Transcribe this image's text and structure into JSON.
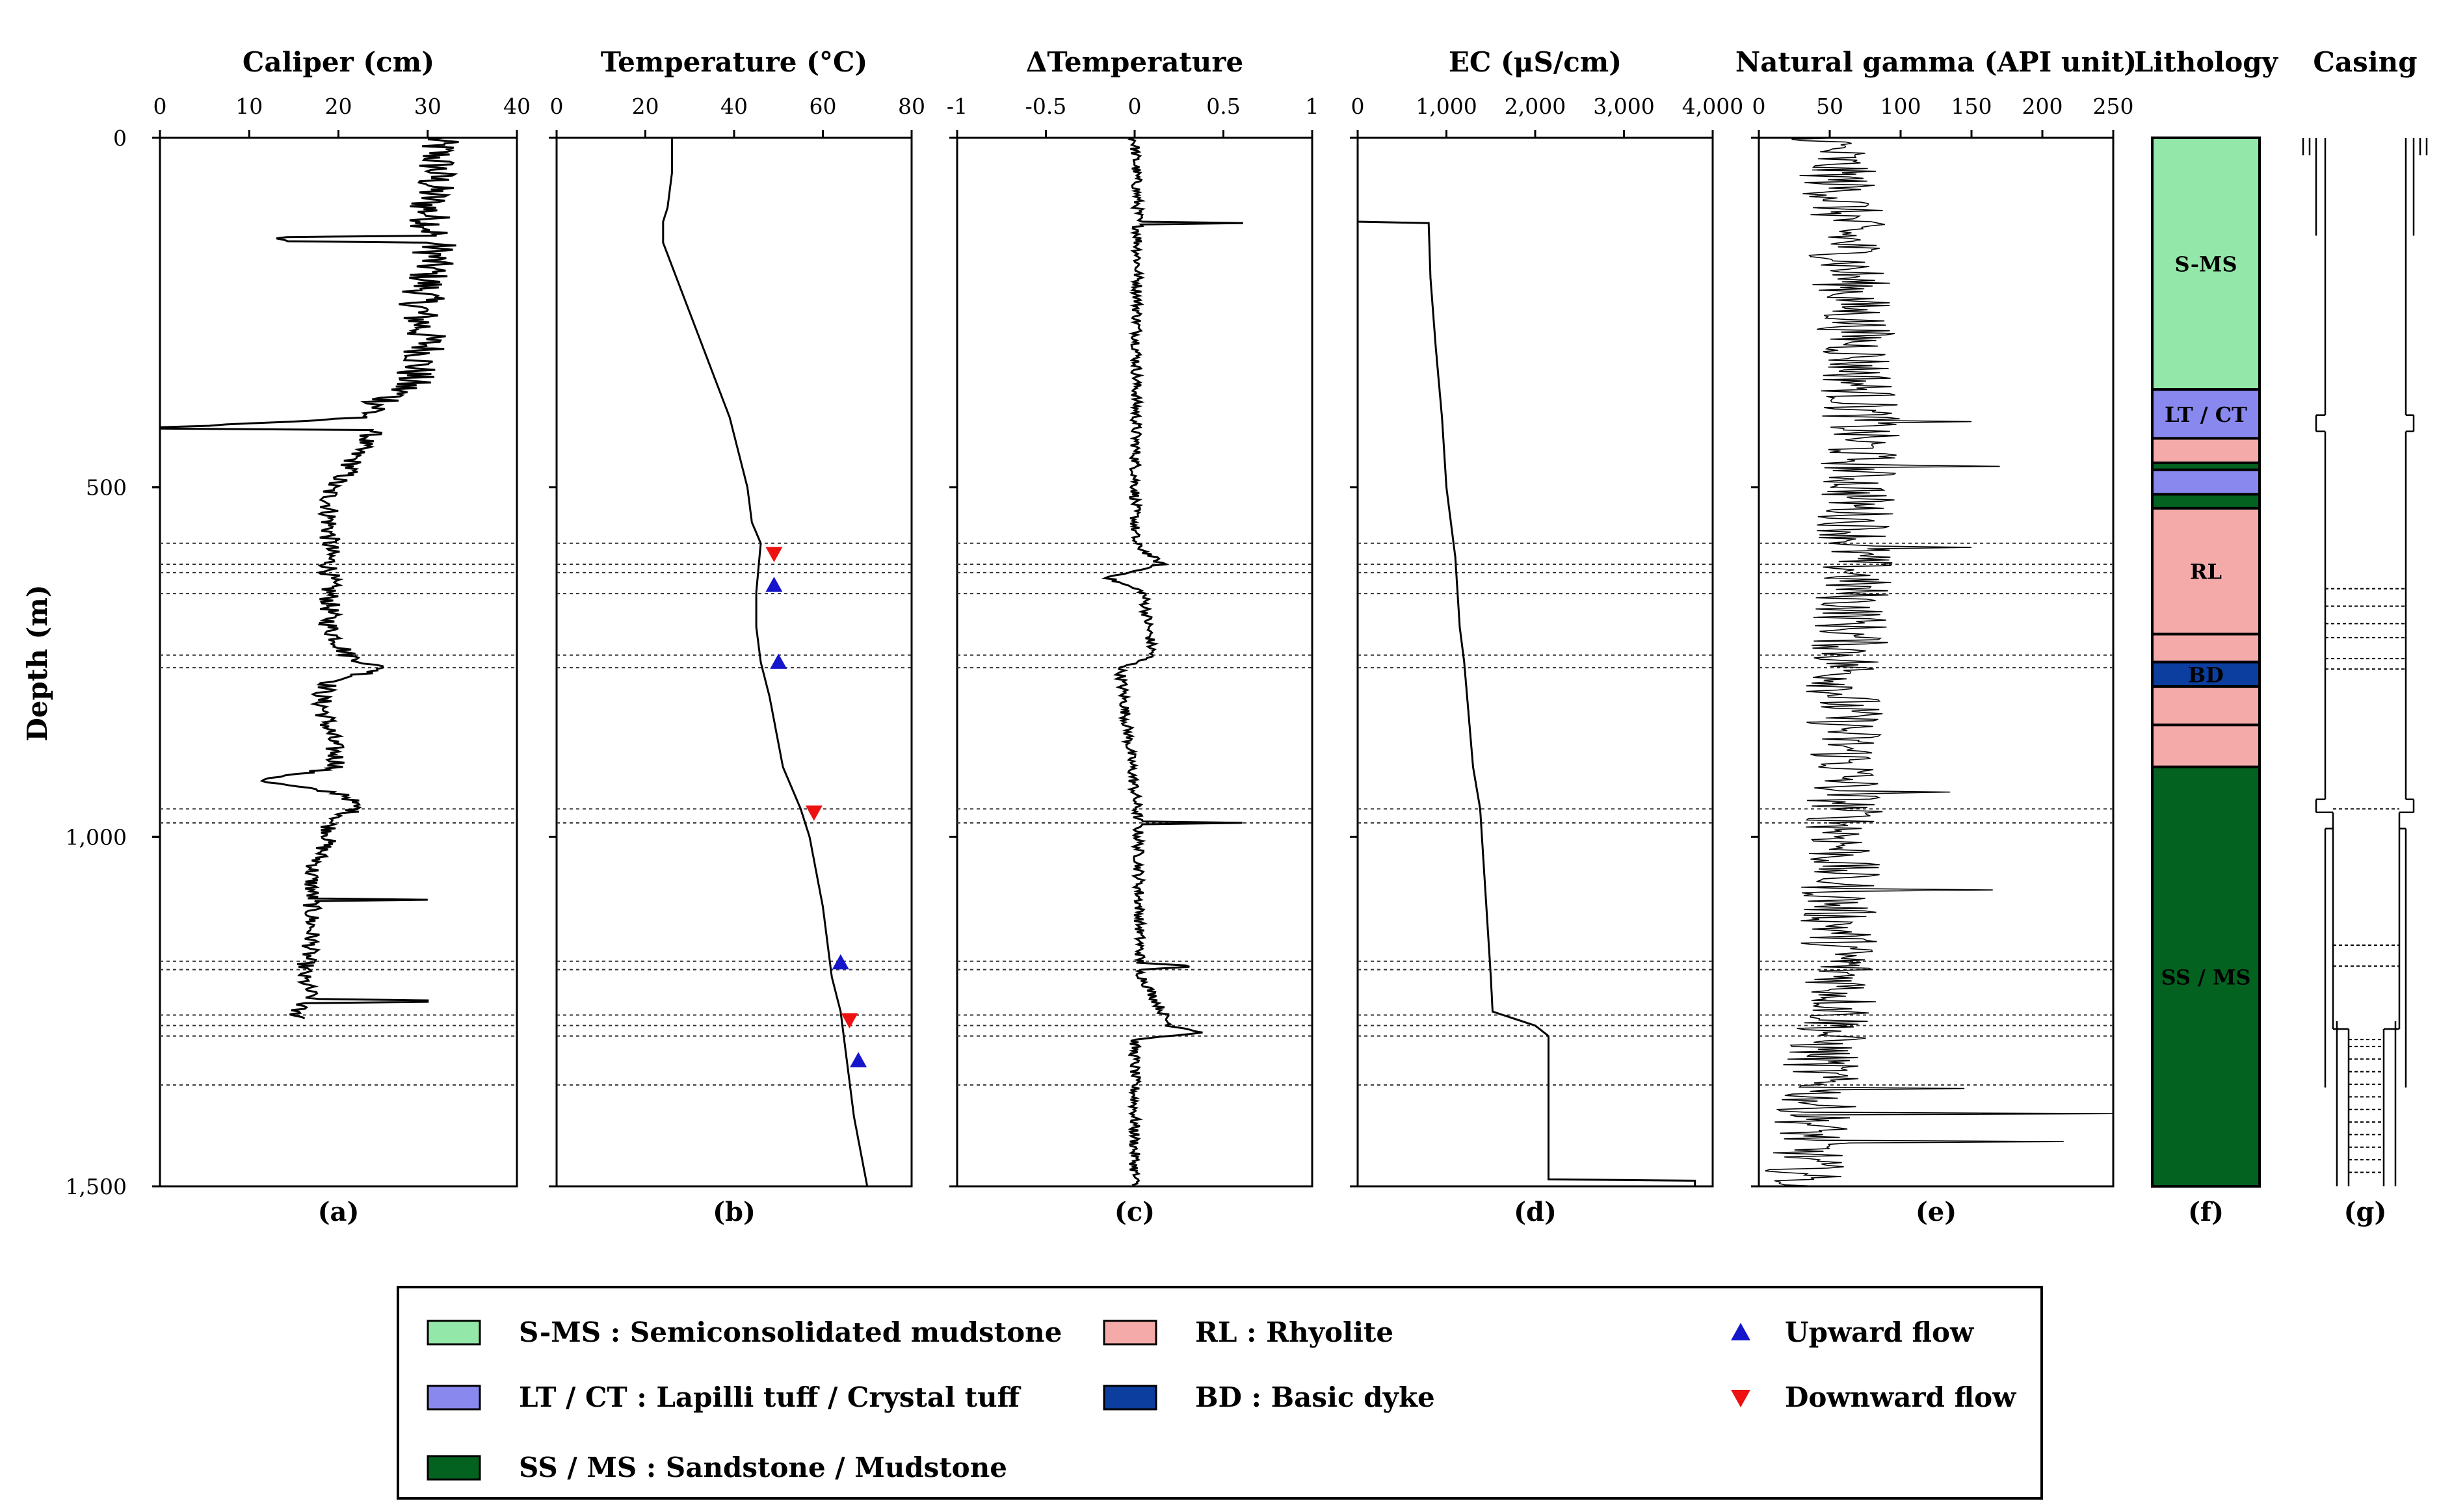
{
  "figure": {
    "y_axis": {
      "label": "Depth (m)",
      "range": [
        0,
        1500
      ],
      "ticks": [
        {
          "value": 0,
          "label": "0"
        },
        {
          "value": 500,
          "label": "500"
        },
        {
          "value": 1000,
          "label": "1,000"
        },
        {
          "value": 1500,
          "label": "1,500"
        }
      ]
    },
    "flow_zone_depths": [
      580,
      610,
      622,
      652,
      740,
      758,
      960,
      980,
      1178,
      1190,
      1255,
      1270,
      1285,
      1355
    ],
    "casing_dotted_depths": [
      645,
      670,
      695,
      715,
      745,
      760,
      960,
      1155,
      1185,
      1290
    ]
  },
  "chart_data": [
    {
      "type": "line",
      "panel": "(a)",
      "title": "Caliper (cm)",
      "xlim": [
        0,
        40
      ],
      "xticks": [
        "0",
        "10",
        "20",
        "30",
        "40"
      ],
      "xtick_values": [
        0,
        10,
        20,
        30,
        40
      ],
      "profile": [
        [
          0,
          31
        ],
        [
          50,
          31
        ],
        [
          100,
          30
        ],
        [
          150,
          31
        ],
        [
          200,
          30
        ],
        [
          250,
          29
        ],
        [
          300,
          30
        ],
        [
          350,
          28
        ],
        [
          400,
          23
        ],
        [
          415,
          0
        ],
        [
          418,
          24
        ],
        [
          450,
          22
        ],
        [
          480,
          21
        ],
        [
          500,
          19
        ],
        [
          550,
          19
        ],
        [
          600,
          19
        ],
        [
          650,
          19
        ],
        [
          700,
          19
        ],
        [
          740,
          21
        ],
        [
          760,
          25
        ],
        [
          780,
          19
        ],
        [
          800,
          18
        ],
        [
          850,
          19
        ],
        [
          900,
          20
        ],
        [
          920,
          11
        ],
        [
          940,
          21
        ],
        [
          960,
          22
        ],
        [
          980,
          19
        ],
        [
          1000,
          19
        ],
        [
          1050,
          17
        ],
        [
          1100,
          17
        ],
        [
          1150,
          17
        ],
        [
          1200,
          16
        ],
        [
          1230,
          17
        ],
        [
          1250,
          15
        ],
        [
          1260,
          16
        ]
      ]
    },
    {
      "type": "line",
      "panel": "(b)",
      "title": "Temperature (°C)",
      "xlim": [
        0,
        80
      ],
      "xticks": [
        "0",
        "20",
        "40",
        "60",
        "80"
      ],
      "xtick_values": [
        0,
        20,
        40,
        60,
        80
      ],
      "profile": [
        [
          0,
          26
        ],
        [
          50,
          26
        ],
        [
          100,
          25
        ],
        [
          120,
          24
        ],
        [
          150,
          24
        ],
        [
          200,
          27
        ],
        [
          300,
          33
        ],
        [
          400,
          39
        ],
        [
          500,
          43
        ],
        [
          550,
          44
        ],
        [
          580,
          46
        ],
        [
          650,
          45
        ],
        [
          700,
          45
        ],
        [
          750,
          46
        ],
        [
          800,
          48
        ],
        [
          900,
          51
        ],
        [
          960,
          55
        ],
        [
          1000,
          57
        ],
        [
          1100,
          60
        ],
        [
          1200,
          62
        ],
        [
          1250,
          64
        ],
        [
          1300,
          65
        ],
        [
          1400,
          67
        ],
        [
          1500,
          70
        ]
      ],
      "markers": [
        {
          "depth": 595,
          "temp": 49,
          "kind": "down"
        },
        {
          "depth": 640,
          "temp": 49,
          "kind": "up"
        },
        {
          "depth": 750,
          "temp": 50,
          "kind": "up"
        },
        {
          "depth": 965,
          "temp": 58,
          "kind": "down"
        },
        {
          "depth": 1180,
          "temp": 64,
          "kind": "up"
        },
        {
          "depth": 1262,
          "temp": 66,
          "kind": "down"
        },
        {
          "depth": 1320,
          "temp": 68,
          "kind": "up"
        }
      ]
    },
    {
      "type": "line",
      "panel": "(c)",
      "title": "ΔTemperature",
      "xlim": [
        -1,
        1
      ],
      "xticks": [
        "-1",
        "-0.5",
        "0",
        "0.5",
        "1"
      ],
      "xtick_values": [
        -1,
        -0.5,
        0,
        0.5,
        1
      ],
      "profile": [
        [
          0,
          0
        ],
        [
          120,
          0.02
        ],
        [
          122,
          0.6
        ],
        [
          124,
          0.02
        ],
        [
          580,
          0
        ],
        [
          610,
          0.15
        ],
        [
          630,
          -0.15
        ],
        [
          650,
          0.05
        ],
        [
          740,
          0.1
        ],
        [
          760,
          -0.08
        ],
        [
          978,
          0.02
        ],
        [
          980,
          0.62
        ],
        [
          982,
          0.02
        ],
        [
          1180,
          0.03
        ],
        [
          1185,
          0.35
        ],
        [
          1190,
          0.02
        ],
        [
          1270,
          0.2
        ],
        [
          1280,
          0.4
        ],
        [
          1290,
          0
        ],
        [
          1500,
          0
        ]
      ]
    },
    {
      "type": "line",
      "panel": "(d)",
      "title": "EC (μS/cm)",
      "xlim": [
        0,
        4000
      ],
      "xticks": [
        "0",
        "1,000",
        "2,000",
        "3,000",
        "4,000"
      ],
      "xtick_values": [
        0,
        1000,
        2000,
        3000,
        4000
      ],
      "profile": [
        [
          0,
          0
        ],
        [
          120,
          0
        ],
        [
          122,
          800
        ],
        [
          200,
          820
        ],
        [
          300,
          880
        ],
        [
          400,
          950
        ],
        [
          500,
          1000
        ],
        [
          600,
          1100
        ],
        [
          700,
          1150
        ],
        [
          750,
          1200
        ],
        [
          900,
          1300
        ],
        [
          960,
          1380
        ],
        [
          1100,
          1450
        ],
        [
          1200,
          1500
        ],
        [
          1250,
          1520
        ],
        [
          1270,
          2000
        ],
        [
          1285,
          2150
        ],
        [
          1300,
          2150
        ],
        [
          1490,
          2150
        ],
        [
          1492,
          3800
        ]
      ]
    },
    {
      "type": "line",
      "panel": "(e)",
      "title": "Natural gamma (API unit)",
      "xlim": [
        0,
        250
      ],
      "xticks": [
        "0",
        "50",
        "100",
        "150",
        "200",
        "250"
      ],
      "xtick_values": [
        0,
        50,
        100,
        150,
        200,
        250
      ],
      "profile": [
        [
          0,
          50
        ],
        [
          100,
          60
        ],
        [
          200,
          65
        ],
        [
          300,
          70
        ],
        [
          400,
          72
        ],
        [
          500,
          70
        ],
        [
          600,
          68
        ],
        [
          700,
          65
        ],
        [
          800,
          60
        ],
        [
          900,
          62
        ],
        [
          1000,
          60
        ],
        [
          1100,
          55
        ],
        [
          1200,
          60
        ],
        [
          1250,
          60
        ],
        [
          1300,
          45
        ],
        [
          1400,
          40
        ],
        [
          1500,
          30
        ]
      ],
      "spikes": [
        [
          405,
          150
        ],
        [
          470,
          170
        ],
        [
          585,
          150
        ],
        [
          935,
          135
        ],
        [
          1075,
          165
        ],
        [
          1360,
          145
        ],
        [
          1395,
          250
        ],
        [
          1435,
          215
        ]
      ]
    },
    {
      "type": "table",
      "panel": "(f)",
      "title": "Lithology",
      "intervals": [
        {
          "top": 0,
          "bottom": 360,
          "code": "S-MS",
          "label": "S-MS"
        },
        {
          "top": 360,
          "bottom": 430,
          "code": "LT/CT",
          "label": "LT / CT"
        },
        {
          "top": 430,
          "bottom": 465,
          "code": "RL",
          "label": ""
        },
        {
          "top": 465,
          "bottom": 475,
          "code": "SS/MS",
          "label": ""
        },
        {
          "top": 475,
          "bottom": 510,
          "code": "LT/CT",
          "label": ""
        },
        {
          "top": 510,
          "bottom": 530,
          "code": "SS/MS",
          "label": ""
        },
        {
          "top": 530,
          "bottom": 710,
          "code": "RL",
          "label": "RL"
        },
        {
          "top": 710,
          "bottom": 750,
          "code": "RL",
          "label": ""
        },
        {
          "top": 750,
          "bottom": 785,
          "code": "BD",
          "label": "BD"
        },
        {
          "top": 785,
          "bottom": 840,
          "code": "RL",
          "label": ""
        },
        {
          "top": 840,
          "bottom": 900,
          "code": "RL",
          "label": ""
        },
        {
          "top": 900,
          "bottom": 1500,
          "code": "SS/MS",
          "label": "SS / MS"
        }
      ]
    },
    {
      "type": "table",
      "panel": "(g)",
      "title": "Casing"
    }
  ],
  "legend": {
    "items": [
      {
        "key": "S-MS",
        "color": "#93e7a9",
        "kind": "box",
        "text": "S-MS : Semiconsolidated mudstone"
      },
      {
        "key": "LT/CT",
        "color": "#8888ee",
        "kind": "box",
        "text": "LT / CT : Lapilli tuff / Crystal tuff"
      },
      {
        "key": "SS/MS",
        "color": "#03621f",
        "kind": "box",
        "text": "SS / MS : Sandstone / Mudstone"
      },
      {
        "key": "RL",
        "color": "#f5aaaa",
        "kind": "box",
        "text": "RL : Rhyolite"
      },
      {
        "key": "BD",
        "color": "#0b3e9e",
        "kind": "box",
        "text": "BD : Basic dyke"
      },
      {
        "key": "up",
        "color": "#1515cc",
        "kind": "up",
        "text": "Upward flow"
      },
      {
        "key": "down",
        "color": "#ee1111",
        "kind": "down",
        "text": "Downward flow"
      }
    ]
  }
}
